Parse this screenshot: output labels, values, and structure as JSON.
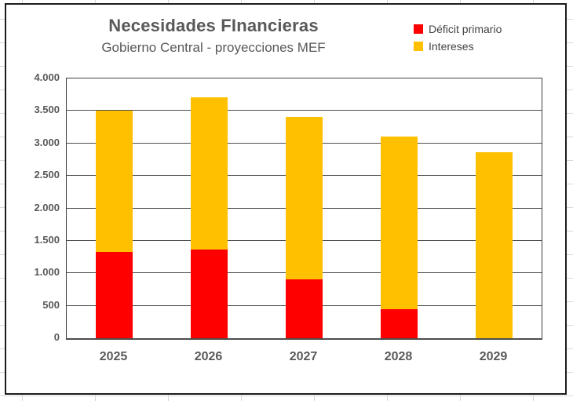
{
  "chart_data": {
    "type": "bar",
    "stacked": true,
    "title": "Necesidades FInancieras",
    "subtitle": "Gobierno Central - proyecciones MEF",
    "categories": [
      "2025",
      "2026",
      "2027",
      "2028",
      "2029"
    ],
    "series": [
      {
        "name": "Déficit primario",
        "color": "#FF0000",
        "values": [
          1330,
          1360,
          910,
          450,
          0
        ]
      },
      {
        "name": "Intereses",
        "color": "#FFC000",
        "values": [
          2180,
          2350,
          2500,
          2650,
          2860
        ]
      }
    ],
    "totals": [
      3510,
      3710,
      3410,
      3100,
      2860
    ],
    "xlabel": "",
    "ylabel": "",
    "ylim": [
      0,
      4000
    ],
    "yticks": [
      0,
      500,
      1000,
      1500,
      2000,
      2500,
      3000,
      3500,
      4000
    ],
    "ytick_labels": [
      "0",
      "500",
      "1.000",
      "1.500",
      "2.000",
      "2.500",
      "3.000",
      "3.500",
      "4.000"
    ],
    "grid": true,
    "legend_position": "top-right",
    "text_color": "#595959"
  }
}
